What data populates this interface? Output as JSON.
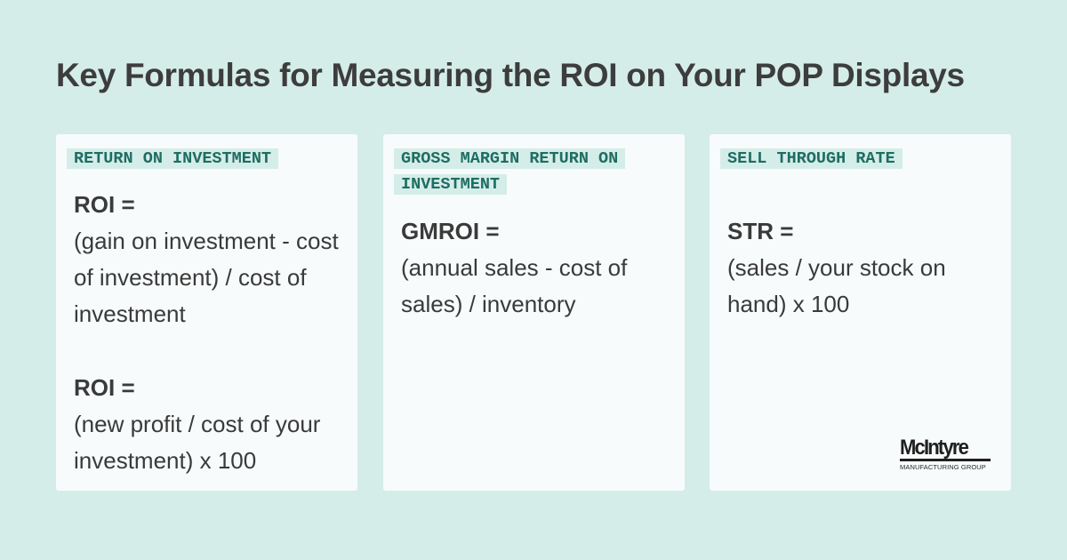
{
  "title": "Key Formulas for Measuring the ROI on Your POP Displays",
  "cards": [
    {
      "tag": "RETURN ON INVESTMENT",
      "formulas": [
        {
          "name": "ROI =",
          "expression": "(gain on investment - cost of investment) / cost of investment"
        },
        {
          "name": "ROI =",
          "expression": "(new profit / cost of your investment) x 100"
        }
      ]
    },
    {
      "tag": "GROSS MARGIN RETURN ON INVESTMENT",
      "formulas": [
        {
          "name": "GMROI =",
          "expression": "(annual sales - cost of sales) / inventory"
        }
      ]
    },
    {
      "tag": "SELL THROUGH RATE",
      "formulas": [
        {
          "name": "STR =",
          "expression": "(sales / your stock on hand) x 100"
        }
      ]
    }
  ],
  "logo": {
    "name": "McIntyre",
    "subtitle": "MANUFACTURING GROUP"
  },
  "colors": {
    "background": "#d5ede8",
    "card": "#f7fbfb",
    "tag_text": "#1e6d63",
    "text": "#3a3a3a"
  }
}
